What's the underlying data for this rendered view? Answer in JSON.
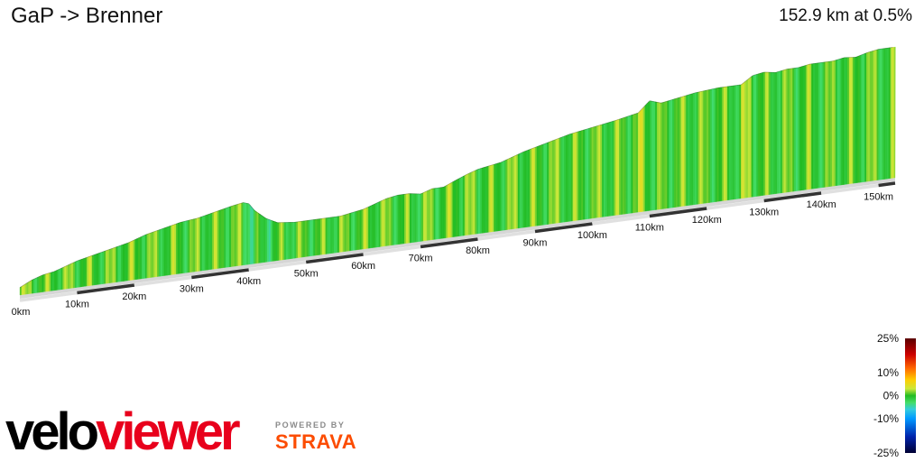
{
  "title": "GaP -> Brenner",
  "summary": "152.9 km at 0.5%",
  "chart_data": {
    "type": "area",
    "title": "GaP -> Brenner",
    "subtitle": "152.9 km at 0.5%",
    "xunit": "km",
    "xlim": [
      0,
      152.9
    ],
    "x_ticks": [
      "0km",
      "10km",
      "20km",
      "30km",
      "40km",
      "50km",
      "60km",
      "70km",
      "80km",
      "90km",
      "100km",
      "110km",
      "120km",
      "130km",
      "140km",
      "150km"
    ],
    "profile": {
      "km": [
        0,
        2,
        4,
        6,
        8,
        10,
        13,
        16,
        19,
        22,
        25,
        28,
        31,
        34,
        37,
        39,
        40,
        41,
        43,
        45,
        48,
        52,
        56,
        60,
        62,
        64,
        66,
        68,
        70,
        72,
        74,
        76,
        78,
        80,
        84,
        88,
        92,
        96,
        100,
        104,
        108,
        110,
        112,
        114,
        118,
        122,
        126,
        128,
        130,
        132,
        134,
        136,
        138,
        140,
        142,
        144,
        146,
        148,
        150,
        152.9
      ],
      "elev": [
        20,
        35,
        45,
        50,
        60,
        70,
        80,
        90,
        100,
        115,
        125,
        135,
        140,
        150,
        160,
        165,
        160,
        140,
        115,
        100,
        95,
        95,
        95,
        105,
        115,
        125,
        130,
        130,
        125,
        135,
        135,
        148,
        160,
        170,
        180,
        200,
        215,
        230,
        240,
        250,
        262,
        290,
        280,
        285,
        295,
        300,
        300,
        320,
        325,
        320,
        325,
        325,
        330,
        330,
        330,
        335,
        332,
        340,
        345,
        345
      ]
    },
    "colorscale": {
      "label_ticks": [
        "25%",
        "10%",
        "0%",
        "-10%",
        "-25%"
      ],
      "stops": [
        {
          "grade": 25,
          "color": "#5a0000"
        },
        {
          "grade": 18,
          "color": "#cc0000"
        },
        {
          "grade": 12,
          "color": "#ff6600"
        },
        {
          "grade": 7,
          "color": "#ffcc00"
        },
        {
          "grade": 3,
          "color": "#cce83a"
        },
        {
          "grade": 0,
          "color": "#22bb22"
        },
        {
          "grade": -3,
          "color": "#44dd66"
        },
        {
          "grade": -6,
          "color": "#33ccdd"
        },
        {
          "grade": -10,
          "color": "#0099ff"
        },
        {
          "grade": -18,
          "color": "#0022aa"
        },
        {
          "grade": -25,
          "color": "#000033"
        }
      ]
    }
  },
  "branding": {
    "logo_part1": "velo",
    "logo_part2": "viewer",
    "powered_by": "POWERED BY",
    "strava": "STRAVA",
    "strava_color": "#fc4c02"
  }
}
